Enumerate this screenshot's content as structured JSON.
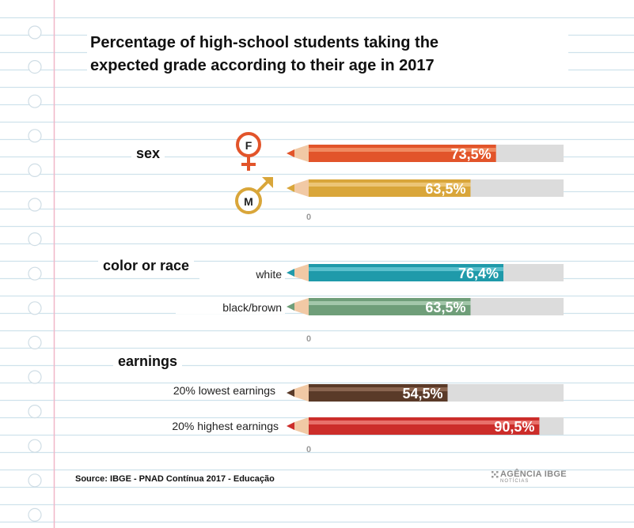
{
  "title_line1": "Percentage of high-school students taking the",
  "title_line2": "expected grade according to their age in 2017",
  "source": "Source: IBGE - PNAD Contínua 2017 - Educação",
  "logo": {
    "name": "AGÊNCIA IBGE",
    "subtitle": "NOTÍCIAS"
  },
  "chart_data": {
    "type": "bar",
    "orientation": "horizontal",
    "xlim": [
      0,
      100
    ],
    "axis_tick_label": "0",
    "groups": [
      {
        "label": "sex",
        "categories": [
          {
            "label": "",
            "symbol": "female-icon",
            "symbol_text": "F",
            "value": 73.5,
            "value_label": "73,5%",
            "color": "#e2542a",
            "stripe_color": "#f08a60"
          },
          {
            "label": "",
            "symbol": "male-icon",
            "symbol_text": "M",
            "value": 63.5,
            "value_label": "63,5%",
            "color": "#d9a63a",
            "stripe_color": "#ecc576"
          }
        ]
      },
      {
        "label": "color or race",
        "categories": [
          {
            "label": "white",
            "value": 76.4,
            "value_label": "76,4%",
            "color": "#1f9aaa",
            "stripe_color": "#5cc0cd"
          },
          {
            "label": "black/brown",
            "value": 63.5,
            "value_label": "63,5%",
            "color": "#6f9e79",
            "stripe_color": "#a3c7aa"
          }
        ]
      },
      {
        "label": "earnings",
        "categories": [
          {
            "label": "20% lowest earnings",
            "value": 54.5,
            "value_label": "54,5%",
            "color": "#5a3a28",
            "stripe_color": "#8a6550"
          },
          {
            "label": "20% highest earnings",
            "value": 90.5,
            "value_label": "90,5%",
            "color": "#cc2d2a",
            "stripe_color": "#e8706a"
          }
        ]
      }
    ],
    "colors": {
      "track": "#dcdcdc",
      "wood": "#f1c9a5",
      "text_on_bar": "#ffffff",
      "notebook_line": "#cfe2ec",
      "margin_line": "#f0b7c8"
    }
  }
}
